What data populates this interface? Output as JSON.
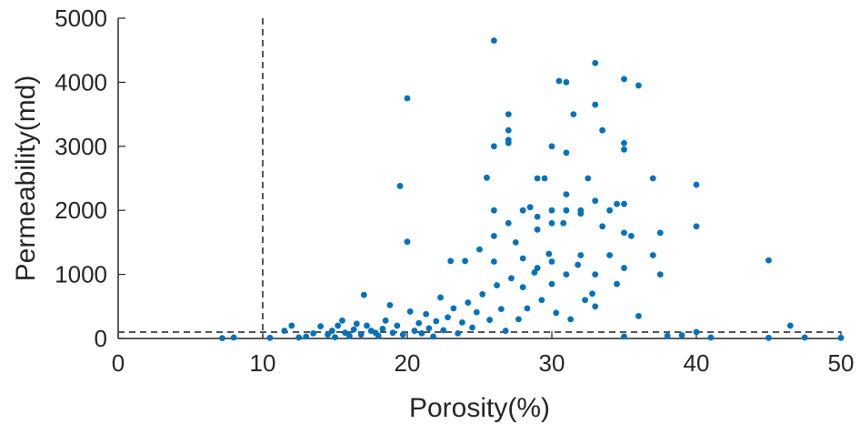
{
  "chart_data": {
    "type": "scatter",
    "xlabel": "Porosity(%)",
    "ylabel": "Permeability(md)",
    "xlim": [
      0,
      50
    ],
    "ylim": [
      0,
      5000
    ],
    "xticks": [
      "0",
      "10",
      "20",
      "30",
      "40",
      "50"
    ],
    "yticks": [
      "0",
      "1000",
      "2000",
      "3000",
      "4000",
      "5000"
    ],
    "grid": false,
    "legend": "none",
    "marker_color": "#0072BD",
    "cutoff_lines": [
      {
        "axis": "x",
        "value": 10,
        "style": "dashed",
        "color": "#555555"
      },
      {
        "axis": "y",
        "value": 100,
        "style": "dashed",
        "color": "#555555"
      }
    ],
    "points": [
      [
        7.2,
        5
      ],
      [
        8,
        15
      ],
      [
        10.5,
        10
      ],
      [
        11.5,
        120
      ],
      [
        12,
        200
      ],
      [
        12.5,
        15
      ],
      [
        13,
        30
      ],
      [
        13.5,
        80
      ],
      [
        14,
        190
      ],
      [
        14.5,
        60
      ],
      [
        14.8,
        120
      ],
      [
        15,
        20
      ],
      [
        15.2,
        200
      ],
      [
        15.5,
        280
      ],
      [
        15.7,
        90
      ],
      [
        16,
        40
      ],
      [
        16.3,
        140
      ],
      [
        16.5,
        230
      ],
      [
        16.8,
        60
      ],
      [
        17,
        680
      ],
      [
        17.2,
        200
      ],
      [
        17.5,
        120
      ],
      [
        17.8,
        90
      ],
      [
        18,
        40
      ],
      [
        18.3,
        150
      ],
      [
        18.5,
        280
      ],
      [
        18.8,
        520
      ],
      [
        19,
        90
      ],
      [
        19.3,
        200
      ],
      [
        19.5,
        2380
      ],
      [
        19.7,
        60
      ],
      [
        20,
        3750
      ],
      [
        20,
        1510
      ],
      [
        20.2,
        420
      ],
      [
        20.5,
        120
      ],
      [
        20.8,
        240
      ],
      [
        21,
        80
      ],
      [
        21.3,
        380
      ],
      [
        21.5,
        160
      ],
      [
        21.8,
        30
      ],
      [
        22,
        270
      ],
      [
        22.3,
        640
      ],
      [
        22.5,
        130
      ],
      [
        22.8,
        330
      ],
      [
        23,
        1210
      ],
      [
        23.2,
        470
      ],
      [
        23.5,
        80
      ],
      [
        23.8,
        250
      ],
      [
        24,
        1210
      ],
      [
        24.2,
        560
      ],
      [
        24.5,
        170
      ],
      [
        24.8,
        410
      ],
      [
        25,
        1390
      ],
      [
        25.2,
        690
      ],
      [
        25.5,
        2510
      ],
      [
        25.7,
        290
      ],
      [
        26,
        4650
      ],
      [
        26,
        3000
      ],
      [
        26,
        2000
      ],
      [
        26,
        1600
      ],
      [
        26,
        1200
      ],
      [
        26.2,
        830
      ],
      [
        26.5,
        460
      ],
      [
        26.8,
        120
      ],
      [
        27,
        3500
      ],
      [
        27,
        3250
      ],
      [
        27,
        3100
      ],
      [
        27,
        3050
      ],
      [
        27,
        1800
      ],
      [
        27.2,
        940
      ],
      [
        27.5,
        1500
      ],
      [
        27.7,
        300
      ],
      [
        28,
        2000
      ],
      [
        28,
        1250
      ],
      [
        28,
        800
      ],
      [
        28.3,
        470
      ],
      [
        28.5,
        2050
      ],
      [
        28.8,
        1030
      ],
      [
        29,
        2500
      ],
      [
        29,
        1900
      ],
      [
        29,
        1700
      ],
      [
        29,
        1100
      ],
      [
        29.3,
        600
      ],
      [
        29.5,
        2500
      ],
      [
        29.8,
        1320
      ],
      [
        30,
        3000
      ],
      [
        30,
        2000
      ],
      [
        30,
        1800
      ],
      [
        30,
        1200
      ],
      [
        30,
        850
      ],
      [
        30.3,
        400
      ],
      [
        30.5,
        4020
      ],
      [
        30.8,
        1800
      ],
      [
        31,
        4000
      ],
      [
        31,
        2900
      ],
      [
        31,
        2250
      ],
      [
        31,
        2000
      ],
      [
        31,
        1000
      ],
      [
        31.3,
        300
      ],
      [
        31.5,
        3500
      ],
      [
        31.8,
        1150
      ],
      [
        32,
        2000
      ],
      [
        32,
        1950
      ],
      [
        32,
        1300
      ],
      [
        32.3,
        600
      ],
      [
        32.5,
        2500
      ],
      [
        32.8,
        700
      ],
      [
        33,
        4300
      ],
      [
        33,
        3650
      ],
      [
        33,
        2150
      ],
      [
        33,
        1000
      ],
      [
        33,
        500
      ],
      [
        33.5,
        3250
      ],
      [
        33.5,
        1750
      ],
      [
        34,
        2000
      ],
      [
        34,
        1300
      ],
      [
        34.5,
        2100
      ],
      [
        34.5,
        850
      ],
      [
        35,
        4050
      ],
      [
        35,
        3050
      ],
      [
        35,
        2950
      ],
      [
        35,
        2100
      ],
      [
        35,
        1650
      ],
      [
        35,
        1100
      ],
      [
        35,
        30
      ],
      [
        35.5,
        1600
      ],
      [
        36,
        3950
      ],
      [
        36,
        350
      ],
      [
        37,
        2500
      ],
      [
        37,
        1300
      ],
      [
        37.5,
        1650
      ],
      [
        37.5,
        1000
      ],
      [
        38,
        40
      ],
      [
        39,
        50
      ],
      [
        40,
        2400
      ],
      [
        40,
        1750
      ],
      [
        40,
        100
      ],
      [
        41,
        15
      ],
      [
        45,
        1220
      ],
      [
        45,
        10
      ],
      [
        46.5,
        200
      ],
      [
        47.5,
        15
      ],
      [
        50,
        10
      ]
    ]
  }
}
